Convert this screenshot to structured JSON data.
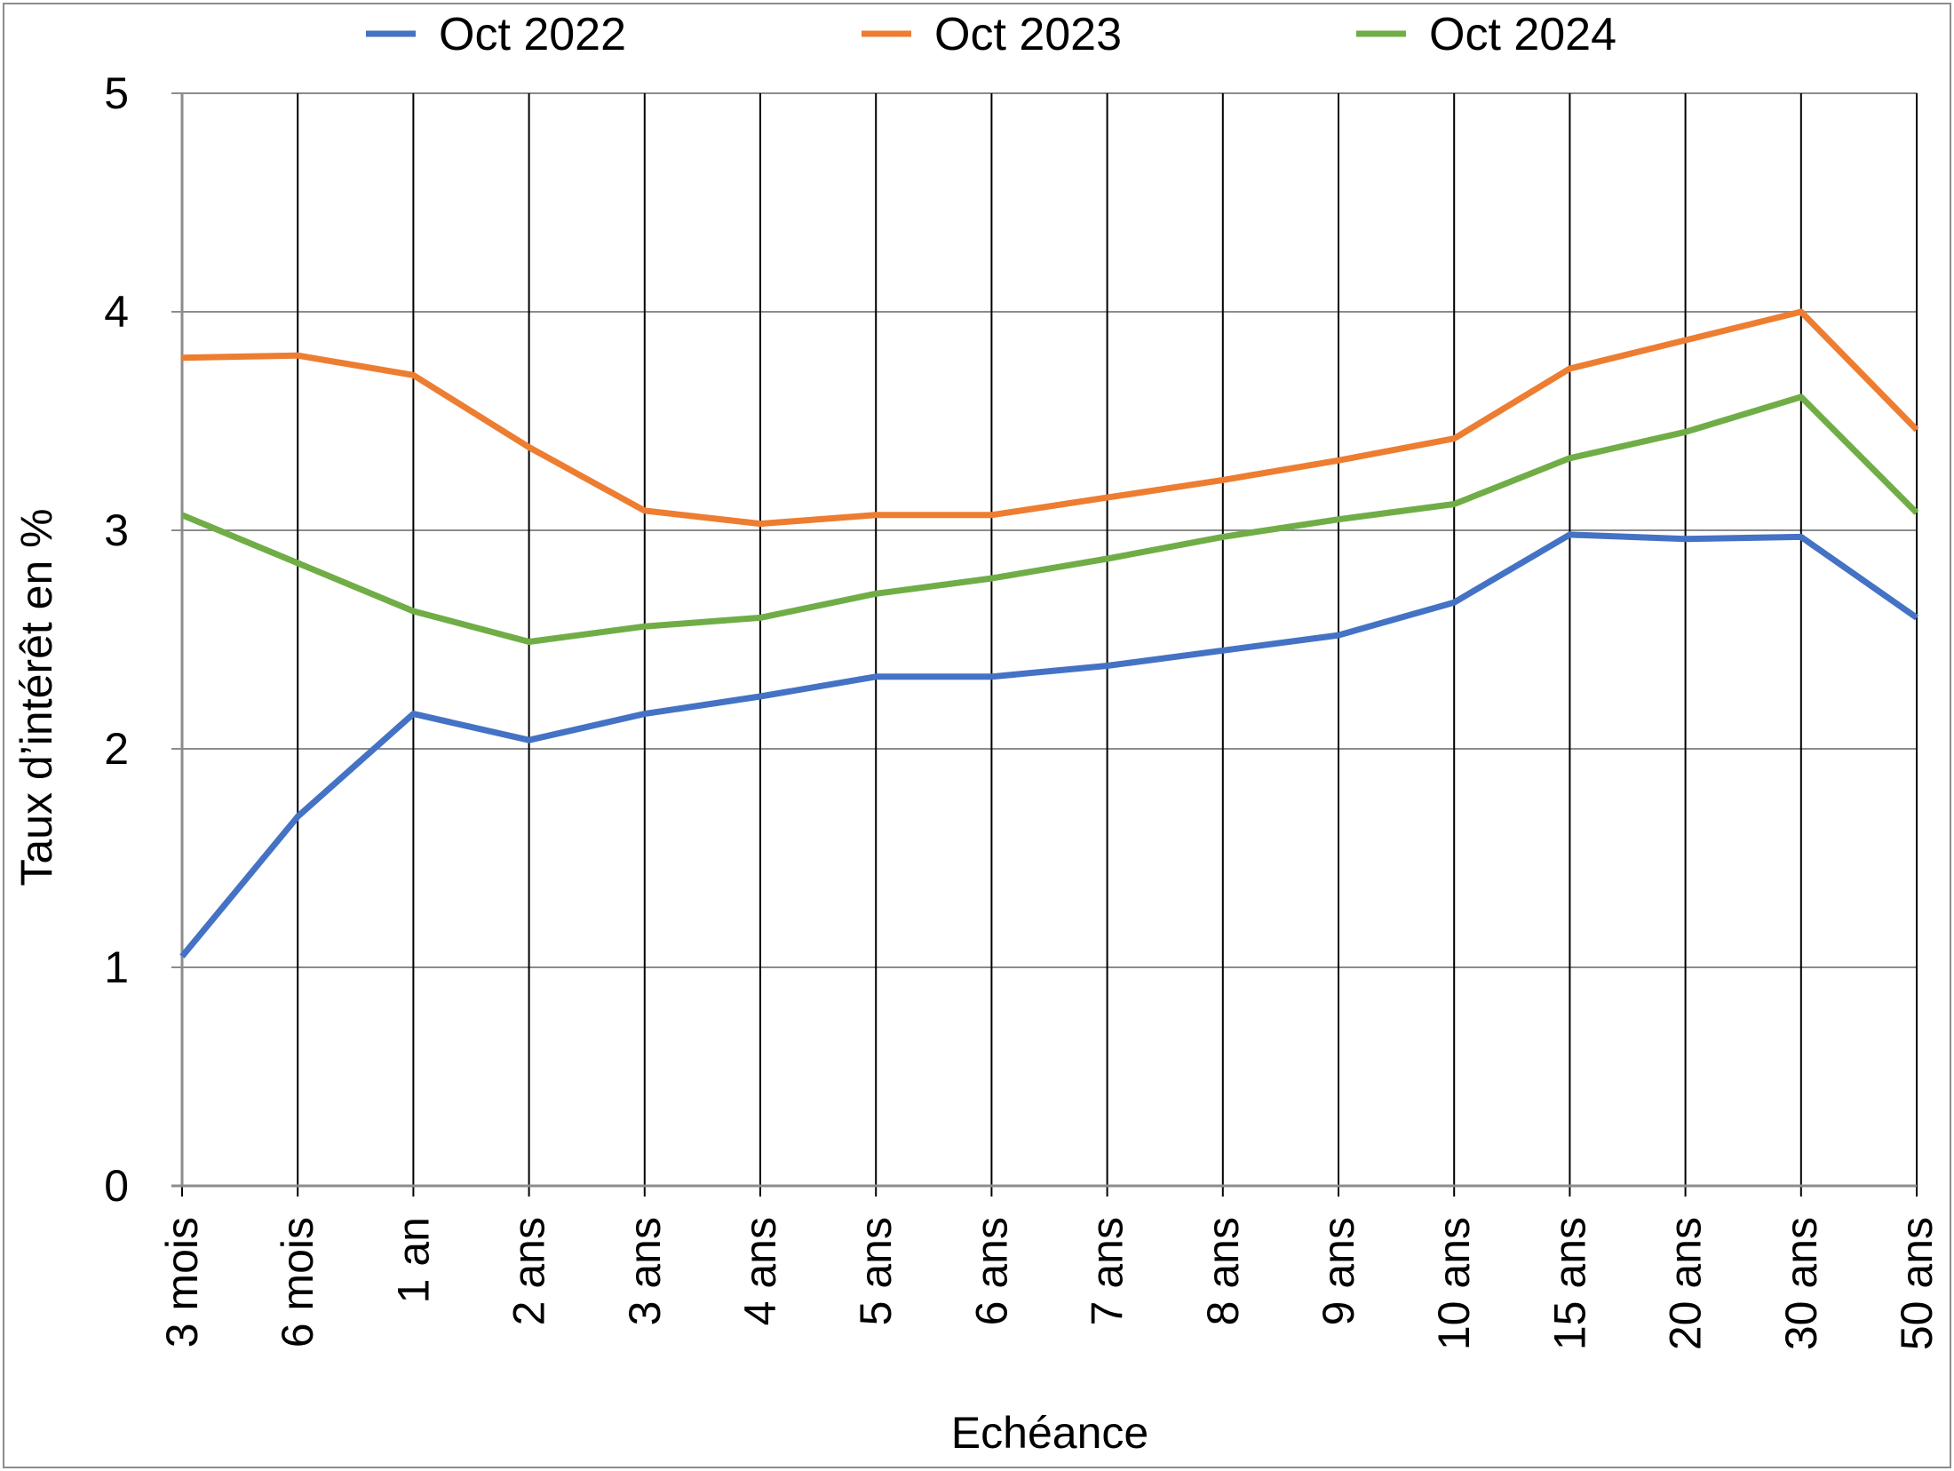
{
  "chart_data": {
    "type": "line",
    "title": "",
    "xlabel": "Echéance",
    "ylabel": "Taux d’intérêt en %",
    "categories": [
      "3 mois",
      "6 mois",
      "1 an",
      "2 ans",
      "3 ans",
      "4 ans",
      "5 ans",
      "6 ans",
      "7 ans",
      "8 ans",
      "9 ans",
      "10 ans",
      "15 ans",
      "20 ans",
      "30 ans",
      "50 ans"
    ],
    "ylim": [
      0,
      5
    ],
    "yticks": [
      "0",
      "1",
      "2",
      "3",
      "4",
      "5"
    ],
    "grid": true,
    "legend_position": "top",
    "series": [
      {
        "name": "Oct 2022",
        "color": "#4472c4",
        "values": [
          1.05,
          1.69,
          2.16,
          2.04,
          2.16,
          2.24,
          2.33,
          2.33,
          2.38,
          2.45,
          2.52,
          2.67,
          2.98,
          2.96,
          2.97,
          2.6
        ]
      },
      {
        "name": "Oct 2023",
        "color": "#ed7d31",
        "values": [
          3.79,
          3.8,
          3.71,
          3.38,
          3.09,
          3.03,
          3.07,
          3.07,
          3.15,
          3.23,
          3.32,
          3.42,
          3.74,
          3.87,
          4.0,
          3.46
        ]
      },
      {
        "name": "Oct 2024",
        "color": "#70ad47",
        "values": [
          3.07,
          2.85,
          2.63,
          2.49,
          2.56,
          2.6,
          2.71,
          2.78,
          2.87,
          2.97,
          3.05,
          3.12,
          3.33,
          3.45,
          3.61,
          3.08
        ]
      }
    ]
  }
}
